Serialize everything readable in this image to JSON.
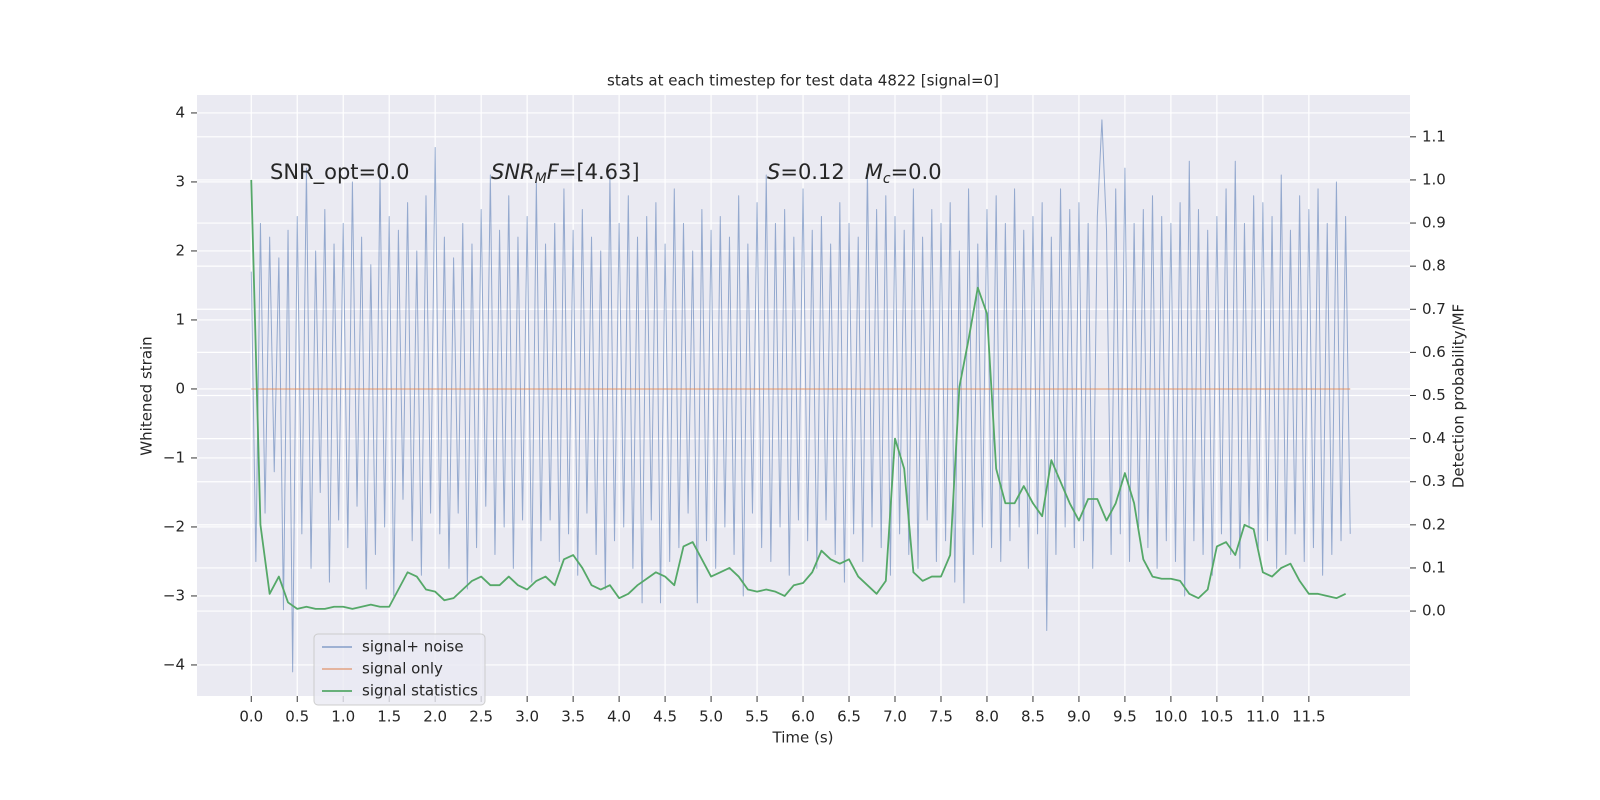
{
  "chart_data": {
    "type": "line",
    "title": "stats at each timestep for test data 4822 [signal=0]",
    "x_label": "Time (s)",
    "y_label": "Whitened strain",
    "y2_label": "Detection probability/MF",
    "xlim": [
      -0.59,
      12.6
    ],
    "ylim": [
      -4.45,
      4.26
    ],
    "y2lim": [
      -0.197,
      1.197
    ],
    "xticks": [
      {
        "value": 0,
        "label": "0.0"
      },
      0.5,
      {
        "value": 1,
        "label": "1.0"
      },
      1.5,
      {
        "value": 2,
        "label": "2.0"
      },
      2.5,
      {
        "value": 3,
        "label": "3.0"
      },
      3.5,
      {
        "value": 4,
        "label": "4.0"
      },
      4.5,
      {
        "value": 5,
        "label": "5.0"
      },
      5.5,
      {
        "value": 6,
        "label": "6.0"
      },
      6.5,
      {
        "value": 7,
        "label": "7.0"
      },
      7.5,
      {
        "value": 8,
        "label": "8.0"
      },
      8.5,
      {
        "value": 9,
        "label": "9.0"
      },
      9.5,
      {
        "value": 10,
        "label": "10.0"
      },
      10.5,
      {
        "value": 11,
        "label": "11.0"
      },
      11.5
    ],
    "yticks": [
      {
        "value": -4,
        "label": "−4"
      },
      {
        "value": -3,
        "label": "−3"
      },
      {
        "value": -2,
        "label": "−2"
      },
      {
        "value": -1,
        "label": "−1"
      },
      0,
      1,
      2,
      3,
      4
    ],
    "y2ticks": [
      {
        "value": 0,
        "label": "0.0"
      },
      0.1,
      0.2,
      0.3,
      0.4,
      0.5,
      0.6,
      0.7,
      0.8,
      0.9,
      {
        "value": 1,
        "label": "1.0"
      },
      1.1
    ],
    "grid": true,
    "legend": "lower left",
    "annotations": [
      [
        {
          "text": "SNR_opt=0.0",
          "style": "normal"
        }
      ],
      [
        {
          "text": "SNR",
          "style": "italic"
        },
        {
          "text": "M",
          "style": "sub"
        },
        {
          "text": "F",
          "style": "italic"
        },
        {
          "text": "=[4.63]",
          "style": "normal"
        }
      ],
      [
        {
          "text": "S",
          "style": "italic"
        },
        {
          "text": "=0.12   ",
          "style": "normal"
        },
        {
          "text": "M",
          "style": "italic"
        },
        {
          "text": "c",
          "style": "sub"
        },
        {
          "text": "=0.0",
          "style": "normal"
        }
      ]
    ],
    "series": [
      {
        "name": "signal+ noise",
        "color": "#4c72b0",
        "axis": "y",
        "x": [
          0,
          0.05,
          0.1,
          0.15,
          0.2,
          0.25,
          0.3,
          0.35,
          0.4,
          0.45,
          0.5,
          0.55,
          0.6,
          0.65,
          0.7,
          0.75,
          0.8,
          0.85,
          0.9,
          0.95,
          1,
          1.05,
          1.1,
          1.15,
          1.2,
          1.25,
          1.3,
          1.35,
          1.4,
          1.45,
          1.5,
          1.55,
          1.6,
          1.65,
          1.7,
          1.75,
          1.8,
          1.85,
          1.9,
          1.95,
          2,
          2.05,
          2.1,
          2.15,
          2.2,
          2.25,
          2.3,
          2.35,
          2.4,
          2.45,
          2.5,
          2.55,
          2.6,
          2.65,
          2.7,
          2.75,
          2.8,
          2.85,
          2.9,
          2.95,
          3,
          3.05,
          3.1,
          3.15,
          3.2,
          3.25,
          3.3,
          3.35,
          3.4,
          3.45,
          3.5,
          3.55,
          3.6,
          3.65,
          3.7,
          3.75,
          3.8,
          3.85,
          3.9,
          3.95,
          4,
          4.05,
          4.1,
          4.15,
          4.2,
          4.25,
          4.3,
          4.35,
          4.4,
          4.45,
          4.5,
          4.55,
          4.6,
          4.65,
          4.7,
          4.75,
          4.8,
          4.85,
          4.9,
          4.95,
          5,
          5.05,
          5.1,
          5.15,
          5.2,
          5.25,
          5.3,
          5.35,
          5.4,
          5.45,
          5.5,
          5.55,
          5.6,
          5.65,
          5.7,
          5.75,
          5.8,
          5.85,
          5.9,
          5.95,
          6,
          6.05,
          6.1,
          6.15,
          6.2,
          6.25,
          6.3,
          6.35,
          6.4,
          6.45,
          6.5,
          6.55,
          6.6,
          6.65,
          6.7,
          6.75,
          6.8,
          6.85,
          6.9,
          6.95,
          7,
          7.05,
          7.1,
          7.15,
          7.2,
          7.25,
          7.3,
          7.35,
          7.4,
          7.45,
          7.5,
          7.55,
          7.6,
          7.65,
          7.7,
          7.75,
          7.8,
          7.85,
          7.9,
          7.95,
          8,
          8.05,
          8.1,
          8.15,
          8.2,
          8.25,
          8.3,
          8.35,
          8.4,
          8.45,
          8.5,
          8.55,
          8.6,
          8.65,
          8.7,
          8.75,
          8.8,
          8.85,
          8.9,
          8.95,
          9,
          9.05,
          9.1,
          9.15,
          9.2,
          9.25,
          9.3,
          9.35,
          9.4,
          9.45,
          9.5,
          9.55,
          9.6,
          9.65,
          9.7,
          9.75,
          9.8,
          9.85,
          9.9,
          9.95,
          10,
          10.05,
          10.1,
          10.15,
          10.2,
          10.25,
          10.3,
          10.35,
          10.4,
          10.45,
          10.5,
          10.55,
          10.6,
          10.65,
          10.7,
          10.75,
          10.8,
          10.85,
          10.9,
          10.95,
          11,
          11.05,
          11.1,
          11.15,
          11.2,
          11.25,
          11.3,
          11.35,
          11.4,
          11.45,
          11.5,
          11.55,
          11.6,
          11.65,
          11.7,
          11.75,
          11.8,
          11.85,
          11.9,
          11.95
        ],
        "values": [
          1.7,
          -2.5,
          2.4,
          -1.8,
          2.2,
          -1.2,
          1.9,
          -3.2,
          2.3,
          -4.1,
          2.5,
          -2.1,
          3.2,
          -2.6,
          2.0,
          -1.5,
          2.6,
          -2.8,
          2.1,
          -1.9,
          2.4,
          -2.3,
          3.0,
          -1.7,
          2.2,
          -2.9,
          1.8,
          -2.4,
          3.1,
          -2.0,
          2.5,
          -3.0,
          2.3,
          -1.6,
          2.7,
          -2.2,
          2.0,
          -2.7,
          2.8,
          -1.8,
          3.5,
          -2.1,
          2.2,
          -2.6,
          1.9,
          -1.8,
          2.4,
          -2.9,
          2.1,
          -2.3,
          2.6,
          -1.7,
          3.1,
          -2.4,
          2.3,
          -2.0,
          2.8,
          -2.6,
          2.2,
          -1.9,
          2.5,
          -2.8,
          3.0,
          -2.2,
          2.1,
          -1.9,
          2.4,
          -2.5,
          2.9,
          -2.1,
          2.3,
          -2.7,
          2.6,
          -1.8,
          2.2,
          -2.4,
          2.0,
          -2.9,
          3.1,
          -2.2,
          2.4,
          -2.0,
          2.8,
          -2.6,
          2.2,
          -3.1,
          2.5,
          -1.9,
          2.7,
          -3.1,
          2.1,
          -2.5,
          2.9,
          -2.3,
          2.4,
          -1.8,
          2.0,
          -3.1,
          2.6,
          -2.2,
          2.3,
          -2.6,
          2.5,
          -2.0,
          2.2,
          -2.4,
          2.8,
          -3.0,
          2.1,
          -1.8,
          2.7,
          -2.3,
          3.1,
          -2.5,
          2.4,
          -2.0,
          2.6,
          -2.7,
          2.2,
          -1.9,
          2.9,
          -2.2,
          2.3,
          -2.6,
          2.5,
          -1.9,
          2.1,
          -2.4,
          2.7,
          -2.8,
          2.4,
          -2.1,
          2.2,
          -2.5,
          3.2,
          -2.0,
          2.6,
          -2.3,
          2.8,
          -2.7,
          2.5,
          -2.1,
          2.3,
          -2.4,
          2.9,
          -2.6,
          2.2,
          -1.9,
          2.6,
          -2.5,
          2.4,
          -2.2,
          2.7,
          -2.8,
          2.0,
          -3.1,
          2.9,
          -2.4,
          2.1,
          -2.0,
          2.6,
          -2.3,
          2.8,
          -2.5,
          2.4,
          -2.2,
          2.9,
          -2.0,
          2.3,
          -2.6,
          2.5,
          -2.1,
          2.7,
          -3.5,
          2.2,
          -2.4,
          2.9,
          -2.0,
          2.6,
          -2.3,
          2.7,
          -2.2,
          2.4,
          -2.6,
          2.5,
          3.9,
          2.3,
          -2.4,
          2.9,
          -2.1,
          3.2,
          -2.5,
          2.4,
          -2.0,
          2.6,
          -2.3,
          2.8,
          -2.6,
          2.5,
          -2.2,
          2.4,
          -2.5,
          2.7,
          -3.0,
          3.3,
          -2.2,
          2.6,
          -2.4,
          2.3,
          -2.7,
          2.5,
          -2.1,
          2.9,
          -2.4,
          3.3,
          -2.6,
          2.4,
          -2.0,
          2.8,
          -2.3,
          2.7,
          -2.2,
          2.5,
          -2.6,
          3.1,
          -2.4,
          2.3,
          -2.1,
          2.8,
          -2.5,
          2.6,
          -2.3,
          2.9,
          -2.7,
          2.4,
          -2.4,
          3.0,
          -2.2,
          2.5,
          -2.1
        ]
      },
      {
        "name": "signal only",
        "color": "#dd8452",
        "axis": "y",
        "x": [
          0,
          11.95
        ],
        "values": [
          0,
          0
        ]
      },
      {
        "name": "signal statistics",
        "color": "#55a868",
        "axis": "y2",
        "x": [
          0,
          0.1,
          0.2,
          0.3,
          0.4,
          0.5,
          0.6,
          0.7,
          0.8,
          0.9,
          1,
          1.1,
          1.2,
          1.3,
          1.4,
          1.5,
          1.6,
          1.7,
          1.8,
          1.9,
          2,
          2.1,
          2.2,
          2.3,
          2.4,
          2.5,
          2.6,
          2.7,
          2.8,
          2.9,
          3,
          3.1,
          3.2,
          3.3,
          3.4,
          3.5,
          3.6,
          3.7,
          3.8,
          3.9,
          4,
          4.1,
          4.2,
          4.3,
          4.4,
          4.5,
          4.6,
          4.7,
          4.8,
          4.9,
          5,
          5.1,
          5.2,
          5.3,
          5.4,
          5.5,
          5.6,
          5.7,
          5.8,
          5.9,
          6,
          6.1,
          6.2,
          6.3,
          6.4,
          6.5,
          6.6,
          6.7,
          6.8,
          6.9,
          7,
          7.1,
          7.2,
          7.3,
          7.4,
          7.5,
          7.6,
          7.7,
          7.8,
          7.9,
          8,
          8.1,
          8.2,
          8.3,
          8.4,
          8.5,
          8.6,
          8.7,
          8.8,
          8.9,
          9,
          9.1,
          9.2,
          9.3,
          9.4,
          9.5,
          9.6,
          9.7,
          9.8,
          9.9,
          10,
          10.1,
          10.2,
          10.3,
          10.4,
          10.5,
          10.6,
          10.7,
          10.8,
          10.9,
          11,
          11.1,
          11.2,
          11.3,
          11.4,
          11.5,
          11.6,
          11.7,
          11.8,
          11.9
        ],
        "values": [
          1.0,
          0.2,
          0.04,
          0.08,
          0.02,
          0.005,
          0.01,
          0.005,
          0.005,
          0.01,
          0.01,
          0.005,
          0.01,
          0.015,
          0.01,
          0.01,
          0.05,
          0.09,
          0.08,
          0.05,
          0.045,
          0.025,
          0.03,
          0.05,
          0.07,
          0.08,
          0.06,
          0.06,
          0.08,
          0.06,
          0.05,
          0.07,
          0.08,
          0.06,
          0.12,
          0.13,
          0.1,
          0.06,
          0.05,
          0.06,
          0.03,
          0.04,
          0.06,
          0.075,
          0.09,
          0.08,
          0.06,
          0.15,
          0.16,
          0.12,
          0.08,
          0.09,
          0.1,
          0.08,
          0.05,
          0.045,
          0.05,
          0.045,
          0.035,
          0.06,
          0.065,
          0.09,
          0.14,
          0.12,
          0.11,
          0.12,
          0.08,
          0.06,
          0.04,
          0.07,
          0.4,
          0.33,
          0.09,
          0.07,
          0.08,
          0.08,
          0.13,
          0.52,
          0.63,
          0.75,
          0.69,
          0.33,
          0.25,
          0.25,
          0.29,
          0.25,
          0.22,
          0.35,
          0.3,
          0.25,
          0.21,
          0.26,
          0.26,
          0.21,
          0.25,
          0.32,
          0.25,
          0.12,
          0.08,
          0.075,
          0.075,
          0.07,
          0.04,
          0.03,
          0.05,
          0.15,
          0.16,
          0.13,
          0.2,
          0.19,
          0.09,
          0.08,
          0.1,
          0.11,
          0.07,
          0.04,
          0.04,
          0.035,
          0.03,
          0.04
        ]
      }
    ]
  }
}
